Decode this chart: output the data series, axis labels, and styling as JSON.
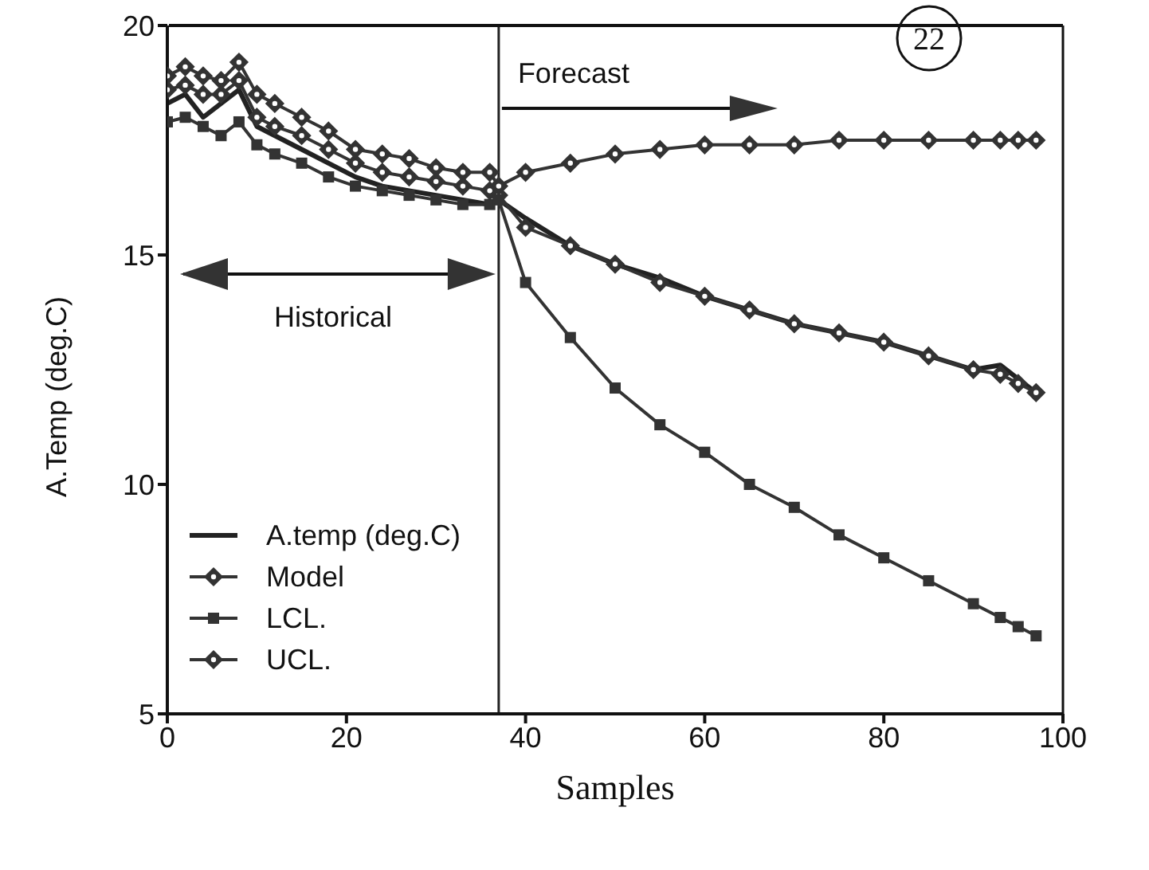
{
  "chart_data": {
    "type": "line",
    "xlabel": "Samples",
    "ylabel": "A.Temp (deg.C)",
    "x": [
      0,
      2,
      4,
      6,
      8,
      10,
      12,
      15,
      18,
      21,
      24,
      27,
      30,
      33,
      36,
      37,
      40,
      45,
      50,
      55,
      60,
      65,
      70,
      75,
      80,
      85,
      90,
      93,
      95,
      97
    ],
    "series": [
      {
        "name": "A.temp (deg.C)",
        "color": "#222222",
        "marker": "none",
        "values": [
          18.3,
          18.5,
          18.0,
          18.3,
          18.6,
          17.8,
          17.6,
          17.3,
          17.0,
          16.7,
          16.5,
          16.4,
          16.3,
          16.2,
          16.1,
          16.2,
          15.8,
          15.2,
          14.8,
          14.5,
          14.1,
          13.8,
          13.5,
          13.3,
          13.1,
          12.8,
          12.5,
          12.6,
          12.3,
          12.0
        ]
      },
      {
        "name": "Model",
        "color": "#333333",
        "marker": "diamond",
        "values": [
          18.6,
          18.7,
          18.5,
          18.5,
          18.8,
          18.0,
          17.8,
          17.6,
          17.3,
          17.0,
          16.8,
          16.7,
          16.6,
          16.5,
          16.4,
          16.3,
          15.6,
          15.2,
          14.8,
          14.4,
          14.1,
          13.8,
          13.5,
          13.3,
          13.1,
          12.8,
          12.5,
          12.4,
          12.2,
          12.0
        ]
      },
      {
        "name": "LCL.",
        "color": "#333333",
        "marker": "square",
        "values": [
          17.9,
          18.0,
          17.8,
          17.6,
          17.9,
          17.4,
          17.2,
          17.0,
          16.7,
          16.5,
          16.4,
          16.3,
          16.2,
          16.1,
          16.1,
          16.2,
          14.4,
          13.2,
          12.1,
          11.3,
          10.7,
          10.0,
          9.5,
          8.9,
          8.4,
          7.9,
          7.4,
          7.1,
          6.9,
          6.7
        ]
      },
      {
        "name": "UCL.",
        "color": "#333333",
        "marker": "diamond",
        "values": [
          18.9,
          19.1,
          18.9,
          18.8,
          19.2,
          18.5,
          18.3,
          18.0,
          17.7,
          17.3,
          17.2,
          17.1,
          16.9,
          16.8,
          16.8,
          16.5,
          16.8,
          17.0,
          17.2,
          17.3,
          17.4,
          17.4,
          17.4,
          17.5,
          17.5,
          17.5,
          17.5,
          17.5,
          17.5,
          17.5
        ]
      }
    ],
    "xlim": [
      0,
      100
    ],
    "xticks": [
      0,
      20,
      40,
      60,
      80,
      100
    ],
    "ylim": [
      5,
      20
    ],
    "yticks": [
      5,
      10,
      15,
      20
    ],
    "ref_lines": [
      {
        "axis": "x",
        "value": 37,
        "color": "#222222"
      }
    ],
    "annotations": [
      "Forecast",
      "Historical",
      "22"
    ],
    "legend": "bottom left",
    "grid": false
  }
}
